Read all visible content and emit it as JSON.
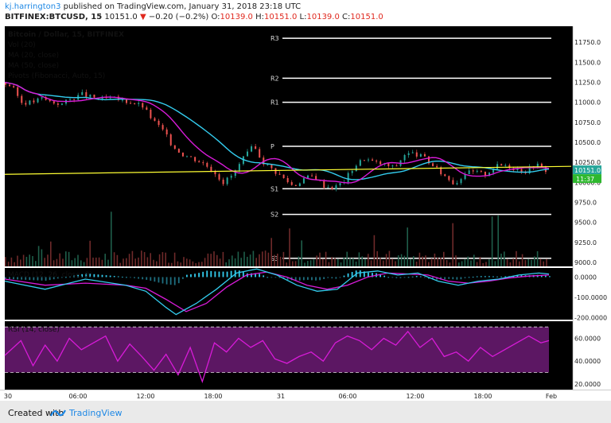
{
  "header": {
    "username": "kj.harrington3",
    "published_text": "published on TradingView.com, January 31, 2018 23:18 UTC",
    "symbol": "BITFINEX:BTCUSD, 15",
    "last": "10151.0",
    "change": "−0.20 (−0.2%)",
    "o_label": "O:",
    "o_value": "10139.0",
    "h_label": "H:",
    "h_value": "10151.0",
    "l_label": "L:",
    "l_value": "10139.0",
    "c_label": "C:",
    "c_value": "10151.0"
  },
  "legend": {
    "title": "Bitcoin / Dollar, 15, BITFINEX",
    "vol": "Vol (20)",
    "ma20": "MA (20, close)",
    "ma50": "MA (50, close)",
    "pivots": "Pivots (Fibonacci, Auto, 15)",
    "macd": "MACD (12, 26, close, 9)",
    "rsi": "RSI (14, close)"
  },
  "footer": {
    "created_with": "Created with",
    "brand": "TradingView"
  },
  "colors": {
    "up": "#26a69a",
    "down": "#ef5350",
    "ma20": "#d81bd8",
    "ma50": "#33ccee",
    "trendline": "#ffff33",
    "pivot": "#ffffff",
    "background": "#000000",
    "rsi_fill": "#5c1763"
  },
  "chart_data": {
    "type": "candlestick",
    "x_ticks": [
      "30",
      "06:00",
      "12:00",
      "18:00",
      "31",
      "06:00",
      "12:00",
      "18:00",
      "Feb"
    ],
    "price_axis": {
      "ticks": [
        11750.0,
        11500.0,
        11250.0,
        11000.0,
        10750.0,
        10500.0,
        10250.0,
        10000.0,
        9750.0,
        9500.0,
        9250.0,
        9000.0
      ],
      "ylim": [
        8950,
        11950
      ]
    },
    "price_ticks_labels": [
      "11750.0",
      "11500.0",
      "11250.0",
      "11000.0",
      "10750.0",
      "10500.0",
      "10250.0",
      "10000.0",
      "9750.0",
      "9500.0",
      "9250.0",
      "9000.0"
    ],
    "last_price_label": "10151.0",
    "countdown_label": "11:37",
    "price_path": [
      [
        0,
        11250
      ],
      [
        5,
        11200
      ],
      [
        10,
        11000
      ],
      [
        15,
        11000
      ],
      [
        20,
        11050
      ],
      [
        25,
        11000
      ],
      [
        30,
        10980
      ],
      [
        35,
        11050
      ],
      [
        40,
        11100
      ],
      [
        45,
        11060
      ],
      [
        50,
        11040
      ],
      [
        55,
        11050
      ],
      [
        60,
        11020
      ],
      [
        65,
        11000
      ],
      [
        70,
        10950
      ],
      [
        75,
        10780
      ],
      [
        80,
        10650
      ],
      [
        85,
        10450
      ],
      [
        90,
        10350
      ],
      [
        95,
        10300
      ],
      [
        100,
        10240
      ],
      [
        105,
        10150
      ],
      [
        110,
        10000
      ],
      [
        115,
        10100
      ],
      [
        120,
        10300
      ],
      [
        125,
        10450
      ],
      [
        130,
        10250
      ],
      [
        135,
        10150
      ],
      [
        140,
        10050
      ],
      [
        145,
        9950
      ],
      [
        150,
        10050
      ],
      [
        155,
        10080
      ],
      [
        160,
        9960
      ],
      [
        165,
        9930
      ],
      [
        170,
        10020
      ],
      [
        175,
        10200
      ],
      [
        180,
        10300
      ],
      [
        185,
        10250
      ],
      [
        190,
        10220
      ],
      [
        195,
        10180
      ],
      [
        200,
        10350
      ],
      [
        205,
        10360
      ],
      [
        210,
        10300
      ],
      [
        215,
        10180
      ],
      [
        220,
        10080
      ],
      [
        225,
        9980
      ],
      [
        230,
        10120
      ],
      [
        235,
        10130
      ],
      [
        240,
        10100
      ],
      [
        245,
        10200
      ],
      [
        250,
        10220
      ],
      [
        255,
        10170
      ],
      [
        260,
        10140
      ],
      [
        265,
        10230
      ],
      [
        270,
        10151
      ]
    ],
    "pivots": [
      {
        "label": "R3",
        "value": 11800
      },
      {
        "label": "R2",
        "value": 11300
      },
      {
        "label": "R1",
        "value": 11000
      },
      {
        "label": "P",
        "value": 10450
      },
      {
        "label": "S1",
        "value": 9920
      },
      {
        "label": "S2",
        "value": 9600
      },
      {
        "label": "S3",
        "value": 9050
      }
    ],
    "trendline": [
      [
        0,
        10100
      ],
      [
        270,
        10200
      ]
    ],
    "macd": {
      "ticks": [
        "0.0000",
        "-100.0000",
        "-200.0000"
      ],
      "values": [
        0,
        -100,
        -200
      ],
      "ylim": [
        -210,
        45
      ],
      "macd_line": [
        [
          0,
          -20
        ],
        [
          20,
          -60
        ],
        [
          40,
          -10
        ],
        [
          60,
          -40
        ],
        [
          70,
          -70
        ],
        [
          80,
          -150
        ],
        [
          85,
          -185
        ],
        [
          95,
          -130
        ],
        [
          105,
          -60
        ],
        [
          115,
          20
        ],
        [
          125,
          40
        ],
        [
          135,
          10
        ],
        [
          145,
          -40
        ],
        [
          155,
          -70
        ],
        [
          165,
          -60
        ],
        [
          175,
          20
        ],
        [
          185,
          30
        ],
        [
          195,
          10
        ],
        [
          205,
          20
        ],
        [
          215,
          -20
        ],
        [
          225,
          -40
        ],
        [
          235,
          -20
        ],
        [
          245,
          -10
        ],
        [
          255,
          10
        ],
        [
          265,
          20
        ],
        [
          270,
          15
        ]
      ],
      "signal_line": [
        [
          0,
          -10
        ],
        [
          20,
          -40
        ],
        [
          40,
          -30
        ],
        [
          60,
          -40
        ],
        [
          70,
          -55
        ],
        [
          80,
          -110
        ],
        [
          90,
          -170
        ],
        [
          100,
          -130
        ],
        [
          110,
          -50
        ],
        [
          120,
          10
        ],
        [
          130,
          25
        ],
        [
          140,
          0
        ],
        [
          150,
          -40
        ],
        [
          160,
          -60
        ],
        [
          170,
          -40
        ],
        [
          180,
          0
        ],
        [
          190,
          20
        ],
        [
          200,
          15
        ],
        [
          210,
          10
        ],
        [
          220,
          -20
        ],
        [
          230,
          -30
        ],
        [
          240,
          -20
        ],
        [
          250,
          -5
        ],
        [
          260,
          5
        ],
        [
          270,
          10
        ]
      ]
    },
    "rsi": {
      "ticks": [
        "60.0000",
        "40.0000",
        "20.0000"
      ],
      "values": [
        60,
        40,
        20
      ],
      "ylim": [
        15,
        75
      ],
      "bands": [
        70,
        30
      ],
      "line": [
        [
          0,
          45
        ],
        [
          8,
          58
        ],
        [
          14,
          36
        ],
        [
          20,
          54
        ],
        [
          26,
          40
        ],
        [
          32,
          60
        ],
        [
          38,
          50
        ],
        [
          44,
          56
        ],
        [
          50,
          62
        ],
        [
          56,
          40
        ],
        [
          62,
          55
        ],
        [
          68,
          44
        ],
        [
          74,
          32
        ],
        [
          80,
          46
        ],
        [
          86,
          28
        ],
        [
          92,
          52
        ],
        [
          98,
          22
        ],
        [
          104,
          56
        ],
        [
          110,
          48
        ],
        [
          116,
          60
        ],
        [
          122,
          52
        ],
        [
          128,
          58
        ],
        [
          134,
          42
        ],
        [
          140,
          38
        ],
        [
          146,
          44
        ],
        [
          152,
          48
        ],
        [
          158,
          40
        ],
        [
          164,
          56
        ],
        [
          170,
          62
        ],
        [
          176,
          58
        ],
        [
          182,
          50
        ],
        [
          188,
          60
        ],
        [
          194,
          54
        ],
        [
          200,
          66
        ],
        [
          206,
          52
        ],
        [
          212,
          60
        ],
        [
          218,
          44
        ],
        [
          224,
          48
        ],
        [
          230,
          40
        ],
        [
          236,
          52
        ],
        [
          242,
          44
        ],
        [
          248,
          50
        ],
        [
          254,
          56
        ],
        [
          260,
          62
        ],
        [
          266,
          56
        ],
        [
          270,
          58
        ]
      ]
    }
  }
}
